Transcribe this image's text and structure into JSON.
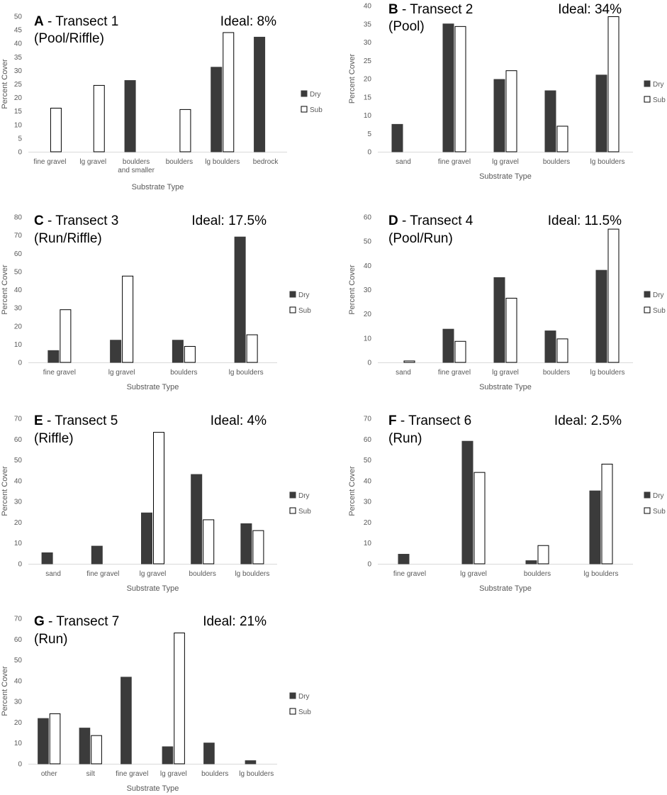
{
  "colors": {
    "dry": "#3b3b3b",
    "sub": "#ffffff",
    "stroke": "#000000",
    "axis": "#d9d9d9",
    "text": "#595959"
  },
  "chart_data": [
    {
      "type": "bar",
      "panel": "A",
      "title": "- Transect 1",
      "subtitle": "(Pool/Riffle)",
      "ideal": "Ideal: 8%",
      "xlabel": "Substrate Type",
      "ylabel": "Percent Cover",
      "ylim": [
        0,
        50
      ],
      "ystep": 5,
      "categories": [
        "fine gravel",
        "lg gravel",
        "boulders\nand smaller",
        "boulders",
        "lg boulders",
        "bedrock"
      ],
      "series": [
        {
          "name": "Dry",
          "values": [
            0,
            0,
            26.3,
            0,
            31.2,
            42.3
          ]
        },
        {
          "name": "Sub",
          "values": [
            16.1,
            24.5,
            0,
            15.6,
            44,
            0
          ]
        }
      ],
      "legend": "right"
    },
    {
      "type": "bar",
      "panel": "B",
      "title": "- Transect 2",
      "subtitle": "(Pool)",
      "ideal": "Ideal: 34%",
      "xlabel": "Substrate Type",
      "ylabel": "Percent Cover",
      "ylim": [
        0,
        40
      ],
      "ystep": 5,
      "categories": [
        "sand",
        "fine gravel",
        "lg gravel",
        "boulders",
        "lg boulders"
      ],
      "series": [
        {
          "name": "Dry",
          "values": [
            7.5,
            35,
            19.8,
            16.7,
            21
          ]
        },
        {
          "name": "Sub",
          "values": [
            0,
            34.3,
            22.2,
            7,
            37
          ]
        }
      ],
      "legend": "right"
    },
    {
      "type": "bar",
      "panel": "C",
      "title": "- Transect 3",
      "subtitle": "(Run/Riffle)",
      "ideal": "Ideal: 17.5%",
      "xlabel": "Substrate Type",
      "ylabel": "Percent Cover",
      "ylim": [
        0,
        80
      ],
      "ystep": 10,
      "categories": [
        "fine gravel",
        "lg gravel",
        "boulders",
        "lg boulders"
      ],
      "series": [
        {
          "name": "Dry",
          "values": [
            6.5,
            12.2,
            12.2,
            69
          ]
        },
        {
          "name": "Sub",
          "values": [
            29,
            47.5,
            8.8,
            15.2
          ]
        }
      ],
      "legend": "right"
    },
    {
      "type": "bar",
      "panel": "D",
      "title": "- Transect 4",
      "subtitle": "(Pool/Run)",
      "ideal": "Ideal: 11.5%",
      "xlabel": "Substrate Type",
      "ylabel": "Percent Cover",
      "ylim": [
        0,
        60
      ],
      "ystep": 10,
      "categories": [
        "sand",
        "fine gravel",
        "lg gravel",
        "boulders",
        "lg boulders"
      ],
      "series": [
        {
          "name": "Dry",
          "values": [
            0,
            13.7,
            35,
            13,
            38
          ]
        },
        {
          "name": "Sub",
          "values": [
            0.6,
            8.7,
            26.5,
            9.7,
            55
          ]
        }
      ],
      "legend": "right"
    },
    {
      "type": "bar",
      "panel": "E",
      "title": "- Transect 5",
      "subtitle": "(Riffle)",
      "ideal": "Ideal: 4%",
      "xlabel": "Substrate Type",
      "ylabel": "Percent Cover",
      "ylim": [
        0,
        70
      ],
      "ystep": 10,
      "categories": [
        "sand",
        "fine gravel",
        "lg gravel",
        "boulders",
        "lg boulders"
      ],
      "series": [
        {
          "name": "Dry",
          "values": [
            5.3,
            8.5,
            24.5,
            43,
            19.3
          ]
        },
        {
          "name": "Sub",
          "values": [
            0,
            0,
            63.3,
            21.2,
            16
          ]
        }
      ],
      "legend": "right"
    },
    {
      "type": "bar",
      "panel": "F",
      "title": "- Transect 6",
      "subtitle": "(Run)",
      "ideal": "Ideal: 2.5%",
      "xlabel": "Substrate Type",
      "ylabel": "Percent Cover",
      "ylim": [
        0,
        70
      ],
      "ystep": 10,
      "categories": [
        "fine gravel",
        "lg gravel",
        "boulders",
        "lg boulders"
      ],
      "series": [
        {
          "name": "Dry",
          "values": [
            4.6,
            59,
            1.5,
            35.1
          ]
        },
        {
          "name": "Sub",
          "values": [
            0,
            44,
            8.8,
            48
          ]
        }
      ],
      "legend": "right"
    },
    {
      "type": "bar",
      "panel": "G",
      "title": "- Transect 7",
      "subtitle": "(Run)",
      "ideal": "Ideal: 21%",
      "xlabel": "Substrate Type",
      "ylabel": "Percent Cover",
      "ylim": [
        0,
        70
      ],
      "ystep": 10,
      "categories": [
        "other",
        "silt",
        "fine gravel",
        "lg gravel",
        "boulders",
        "lg boulders"
      ],
      "series": [
        {
          "name": "Dry",
          "values": [
            21.8,
            17.2,
            41.7,
            8.2,
            10,
            1.5
          ]
        },
        {
          "name": "Sub",
          "values": [
            24.1,
            13.6,
            0,
            63,
            0,
            0
          ]
        }
      ],
      "legend": "right"
    }
  ]
}
